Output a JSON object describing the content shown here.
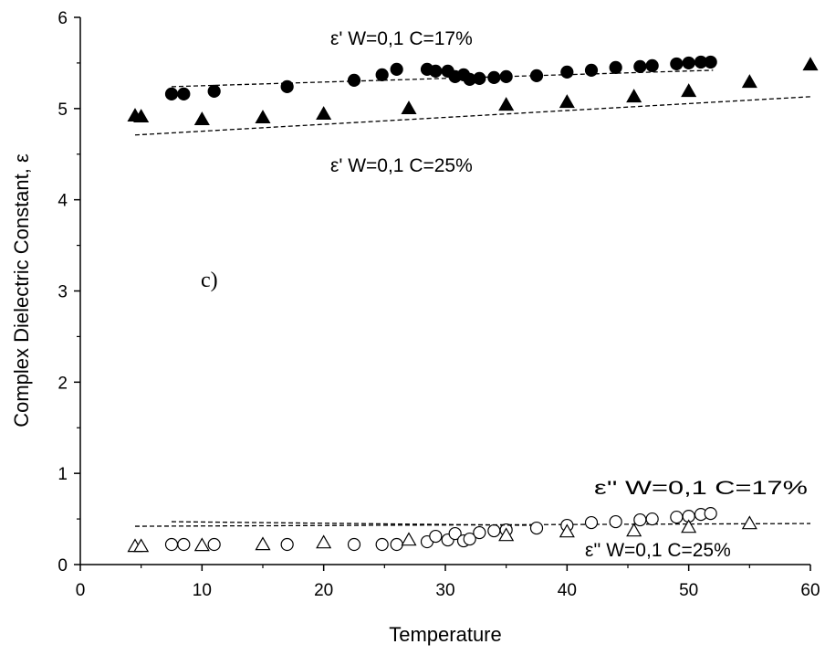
{
  "chart_data": {
    "type": "scatter",
    "title": "",
    "panel_label": "c)",
    "xlabel": "Temperature",
    "ylabel": "Complex Dielectric Constant, ε",
    "xlim": [
      0,
      60
    ],
    "ylim": [
      0,
      6
    ],
    "xticks": [
      0,
      10,
      20,
      30,
      40,
      50,
      60
    ],
    "yticks": [
      0,
      1,
      2,
      3,
      4,
      5,
      6
    ],
    "grid": false,
    "annotations": {
      "eps1_c17": "ε' W=0,1 C=17%",
      "eps1_c25": "ε'  W=0,1 C=25%",
      "eps2_c17": "ε''  W=0,1 C=17%",
      "eps2_c25": "ε''  W=0,1 C=25%"
    },
    "series": [
      {
        "marker": "filled-circle",
        "x": [
          7.5,
          8.5,
          11,
          17,
          22.5,
          24.8,
          26,
          28.5,
          29.2,
          30.2,
          30.8,
          31.5,
          32,
          32.8,
          34,
          35,
          37.5,
          40,
          42,
          44,
          46,
          47,
          49,
          50,
          51,
          51.8
        ],
        "y": [
          5.16,
          5.16,
          5.19,
          5.24,
          5.31,
          5.37,
          5.43,
          5.43,
          5.41,
          5.41,
          5.35,
          5.37,
          5.32,
          5.33,
          5.34,
          5.35,
          5.36,
          5.4,
          5.42,
          5.45,
          5.46,
          5.47,
          5.49,
          5.5,
          5.51,
          5.51
        ],
        "trend": {
          "x": [
            7.5,
            52
          ],
          "y": [
            5.24,
            5.42
          ]
        }
      },
      {
        "marker": "filled-triangle",
        "x": [
          4.5,
          5,
          10,
          15,
          20,
          27,
          35,
          40,
          45.5,
          50,
          55,
          60
        ],
        "y": [
          4.92,
          4.91,
          4.88,
          4.9,
          4.94,
          5.0,
          5.04,
          5.07,
          5.13,
          5.19,
          5.29,
          5.48
        ],
        "trend": {
          "x": [
            4.5,
            60
          ],
          "y": [
            4.71,
            5.13
          ]
        }
      },
      {
        "marker": "open-circle",
        "x": [
          7.5,
          8.5,
          11,
          17,
          22.5,
          24.8,
          26,
          28.5,
          29.2,
          30.2,
          30.8,
          31.5,
          32,
          32.8,
          34,
          35,
          37.5,
          40,
          42,
          44,
          46,
          47,
          49,
          50,
          51,
          51.8
        ],
        "y": [
          0.22,
          0.22,
          0.22,
          0.22,
          0.22,
          0.22,
          0.22,
          0.25,
          0.31,
          0.27,
          0.34,
          0.26,
          0.28,
          0.35,
          0.37,
          0.38,
          0.4,
          0.43,
          0.46,
          0.47,
          0.49,
          0.5,
          0.52,
          0.53,
          0.55,
          0.56
        ],
        "trend": {
          "x": [
            4.5,
            60
          ],
          "y": [
            0.42,
            0.45
          ]
        }
      },
      {
        "marker": "open-triangle",
        "x": [
          4.5,
          5,
          10,
          15,
          20,
          27,
          35,
          40,
          45.5,
          50,
          55
        ],
        "y": [
          0.2,
          0.2,
          0.21,
          0.22,
          0.24,
          0.27,
          0.32,
          0.36,
          0.37,
          0.41,
          0.45
        ],
        "trend": {
          "x": [
            7.5,
            37
          ],
          "y": [
            0.47,
            0.43
          ]
        }
      }
    ]
  }
}
